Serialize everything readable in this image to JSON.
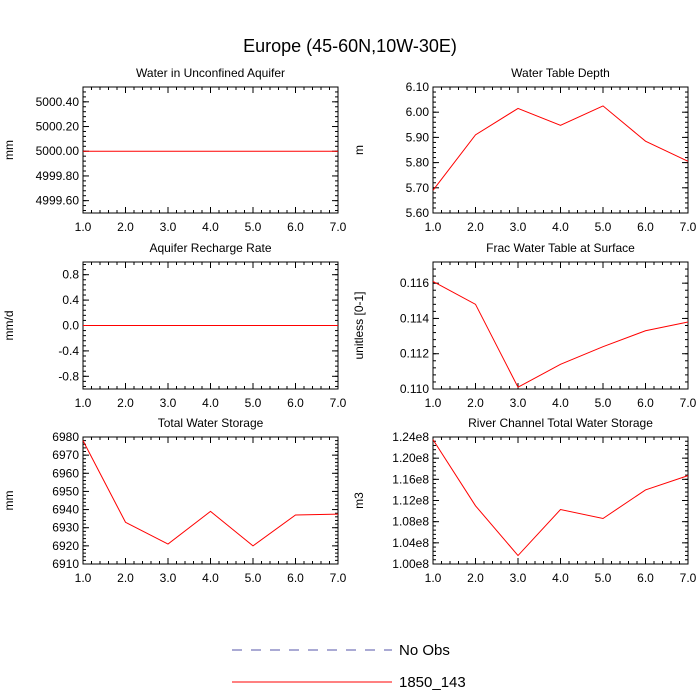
{
  "figure": {
    "title": "Europe (45-60N,10W-30E)",
    "line_color": "#ff0000",
    "obs_color": "#5555aa",
    "legend": [
      {
        "label": "No Obs",
        "style": "dashed",
        "color": "#5555aa"
      },
      {
        "label": "1850_143",
        "style": "solid",
        "color": "#ff0000"
      }
    ]
  },
  "chart_data": [
    {
      "type": "line",
      "title": "Water in Unconfined Aquifer",
      "ylabel": "mm",
      "xlim": [
        1,
        7
      ],
      "ylim": [
        4999.5,
        5000.52
      ],
      "x_ticks": [
        1,
        2,
        3,
        4,
        5,
        6,
        7
      ],
      "x_tick_labels": [
        "1.0",
        "2.0",
        "3.0",
        "4.0",
        "5.0",
        "6.0",
        "7.0"
      ],
      "y_ticks": [
        4999.6,
        4999.8,
        5000.0,
        5000.2,
        5000.4
      ],
      "y_tick_labels": [
        "4999.60",
        "4999.80",
        "5000.00",
        "5000.20",
        "5000.40"
      ],
      "y_minor_step": 0.04,
      "series": [
        {
          "name": "1850_143",
          "x": [
            1,
            2,
            3,
            4,
            5,
            6,
            7
          ],
          "values": [
            5000.0,
            5000.0,
            5000.0,
            5000.0,
            5000.0,
            5000.0,
            5000.0
          ]
        }
      ]
    },
    {
      "type": "line",
      "title": "Water Table Depth",
      "ylabel": "m",
      "xlim": [
        1,
        7
      ],
      "ylim": [
        5.6,
        6.1
      ],
      "x_ticks": [
        1,
        2,
        3,
        4,
        5,
        6,
        7
      ],
      "x_tick_labels": [
        "1.0",
        "2.0",
        "3.0",
        "4.0",
        "5.0",
        "6.0",
        "7.0"
      ],
      "y_ticks": [
        5.6,
        5.7,
        5.8,
        5.9,
        6.0,
        6.1
      ],
      "y_tick_labels": [
        "5.60",
        "5.70",
        "5.80",
        "5.90",
        "6.00",
        "6.10"
      ],
      "y_minor_step": 0.02,
      "series": [
        {
          "name": "1850_143",
          "x": [
            1,
            2,
            3,
            4,
            5,
            6,
            7
          ],
          "values": [
            5.69,
            5.91,
            6.015,
            5.948,
            6.025,
            5.885,
            5.805
          ]
        }
      ]
    },
    {
      "type": "line",
      "title": "Aquifer Recharge Rate",
      "ylabel": "mm/d",
      "xlim": [
        1,
        7
      ],
      "ylim": [
        -1.0,
        1.0
      ],
      "x_ticks": [
        1,
        2,
        3,
        4,
        5,
        6,
        7
      ],
      "x_tick_labels": [
        "1.0",
        "2.0",
        "3.0",
        "4.0",
        "5.0",
        "6.0",
        "7.0"
      ],
      "y_ticks": [
        -0.8,
        -0.4,
        0.0,
        0.4,
        0.8
      ],
      "y_tick_labels": [
        "-0.8",
        "-0.4",
        "0.0",
        "0.4",
        "0.8"
      ],
      "y_minor_step": 0.08,
      "series": [
        {
          "name": "1850_143",
          "x": [
            1,
            2,
            3,
            4,
            5,
            6,
            7
          ],
          "values": [
            0,
            0,
            0,
            0,
            0,
            0,
            0
          ]
        }
      ]
    },
    {
      "type": "line",
      "title": "Frac Water Table at Surface",
      "ylabel": "unitless [0-1]",
      "xlim": [
        1,
        7
      ],
      "ylim": [
        0.11,
        0.1172
      ],
      "x_ticks": [
        1,
        2,
        3,
        4,
        5,
        6,
        7
      ],
      "x_tick_labels": [
        "1.0",
        "2.0",
        "3.0",
        "4.0",
        "5.0",
        "6.0",
        "7.0"
      ],
      "y_ticks": [
        0.11,
        0.112,
        0.114,
        0.116
      ],
      "y_tick_labels": [
        "0.110",
        "0.112",
        "0.114",
        "0.116"
      ],
      "y_minor_step": 0.0004,
      "series": [
        {
          "name": "1850_143",
          "x": [
            1,
            2,
            3,
            4,
            5,
            6,
            7
          ],
          "values": [
            0.1161,
            0.1148,
            0.1101,
            0.1114,
            0.1124,
            0.1133,
            0.1138
          ]
        }
      ]
    },
    {
      "type": "line",
      "title": "Total Water Storage",
      "ylabel": "mm",
      "xlim": [
        1,
        7
      ],
      "ylim": [
        6910,
        6980
      ],
      "x_ticks": [
        1,
        2,
        3,
        4,
        5,
        6,
        7
      ],
      "x_tick_labels": [
        "1.0",
        "2.0",
        "3.0",
        "4.0",
        "5.0",
        "6.0",
        "7.0"
      ],
      "y_ticks": [
        6910,
        6920,
        6930,
        6940,
        6950,
        6960,
        6970,
        6980
      ],
      "y_tick_labels": [
        "6910",
        "6920",
        "6930",
        "6940",
        "6950",
        "6960",
        "6970",
        "6980"
      ],
      "y_minor_step": 2,
      "series": [
        {
          "name": "1850_143",
          "x": [
            1,
            2,
            3,
            4,
            5,
            6,
            7
          ],
          "values": [
            6978,
            6933,
            6921,
            6939,
            6920,
            6937,
            6937.5
          ]
        }
      ]
    },
    {
      "type": "line",
      "title": "River Channel Total Water Storage",
      "ylabel": "m3",
      "xlim": [
        1,
        7
      ],
      "ylim": [
        1.0,
        1.24
      ],
      "x_ticks": [
        1,
        2,
        3,
        4,
        5,
        6,
        7
      ],
      "x_tick_labels": [
        "1.0",
        "2.0",
        "3.0",
        "4.0",
        "5.0",
        "6.0",
        "7.0"
      ],
      "y_ticks": [
        1.0,
        1.04,
        1.08,
        1.12,
        1.16,
        1.2,
        1.24
      ],
      "y_tick_labels": [
        "1.00e8",
        "1.04e8",
        "1.08e8",
        "1.12e8",
        "1.16e8",
        "1.20e8",
        "1.24e8"
      ],
      "y_minor_step": 0.008,
      "series": [
        {
          "name": "1850_143",
          "x": [
            1,
            2,
            3,
            4,
            5,
            6,
            7
          ],
          "values": [
            1.235,
            1.11,
            1.016,
            1.103,
            1.086,
            1.14,
            1.167
          ]
        }
      ]
    }
  ]
}
